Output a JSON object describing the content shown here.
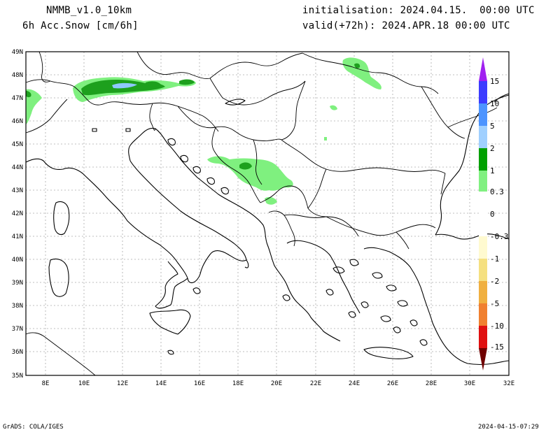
{
  "header": {
    "model": "NMMB_v1.0_10km",
    "field": "6h Acc.Snow [cm/6h]",
    "init": "initialisation: 2024.04.15.  00:00 UTC",
    "valid": "valid(+72h): 2024.APR.18 00:00 UTC"
  },
  "footer": {
    "left": "GrADS: COLA/IGES",
    "right": "2024-04-15-07:29"
  },
  "axes": {
    "lat_labels": [
      "49N",
      "48N",
      "47N",
      "46N",
      "45N",
      "44N",
      "43N",
      "42N",
      "41N",
      "40N",
      "39N",
      "38N",
      "37N",
      "36N",
      "35N"
    ],
    "lon_labels": [
      "8E",
      "10E",
      "12E",
      "14E",
      "16E",
      "18E",
      "20E",
      "22E",
      "24E",
      "26E",
      "28E",
      "30E",
      "32E"
    ],
    "lat_range": [
      35,
      49
    ],
    "lon_range": [
      7,
      32
    ]
  },
  "colorbar": {
    "labels": [
      "15",
      "10",
      "5",
      "2",
      "1",
      "0.3",
      "0",
      "-0.3",
      "-1",
      "-2",
      "-5",
      "-10",
      "-15"
    ],
    "colors": {
      "c15": "#a020f0",
      "c10": "#3c3cff",
      "c5": "#4d94ff",
      "c2": "#a0d0ff",
      "c1": "#00a000",
      "c03": "#80f080",
      "n03": "#fffad0",
      "n1": "#f5e080",
      "n2": "#f0b040",
      "n5": "#f08030",
      "n10": "#e01010",
      "n15": "#a00000",
      "nmax": "#700000"
    }
  },
  "snow_colors": {
    "light": "#7ff07f",
    "mid": "#1da01d",
    "blue": "#8fc8ff"
  }
}
